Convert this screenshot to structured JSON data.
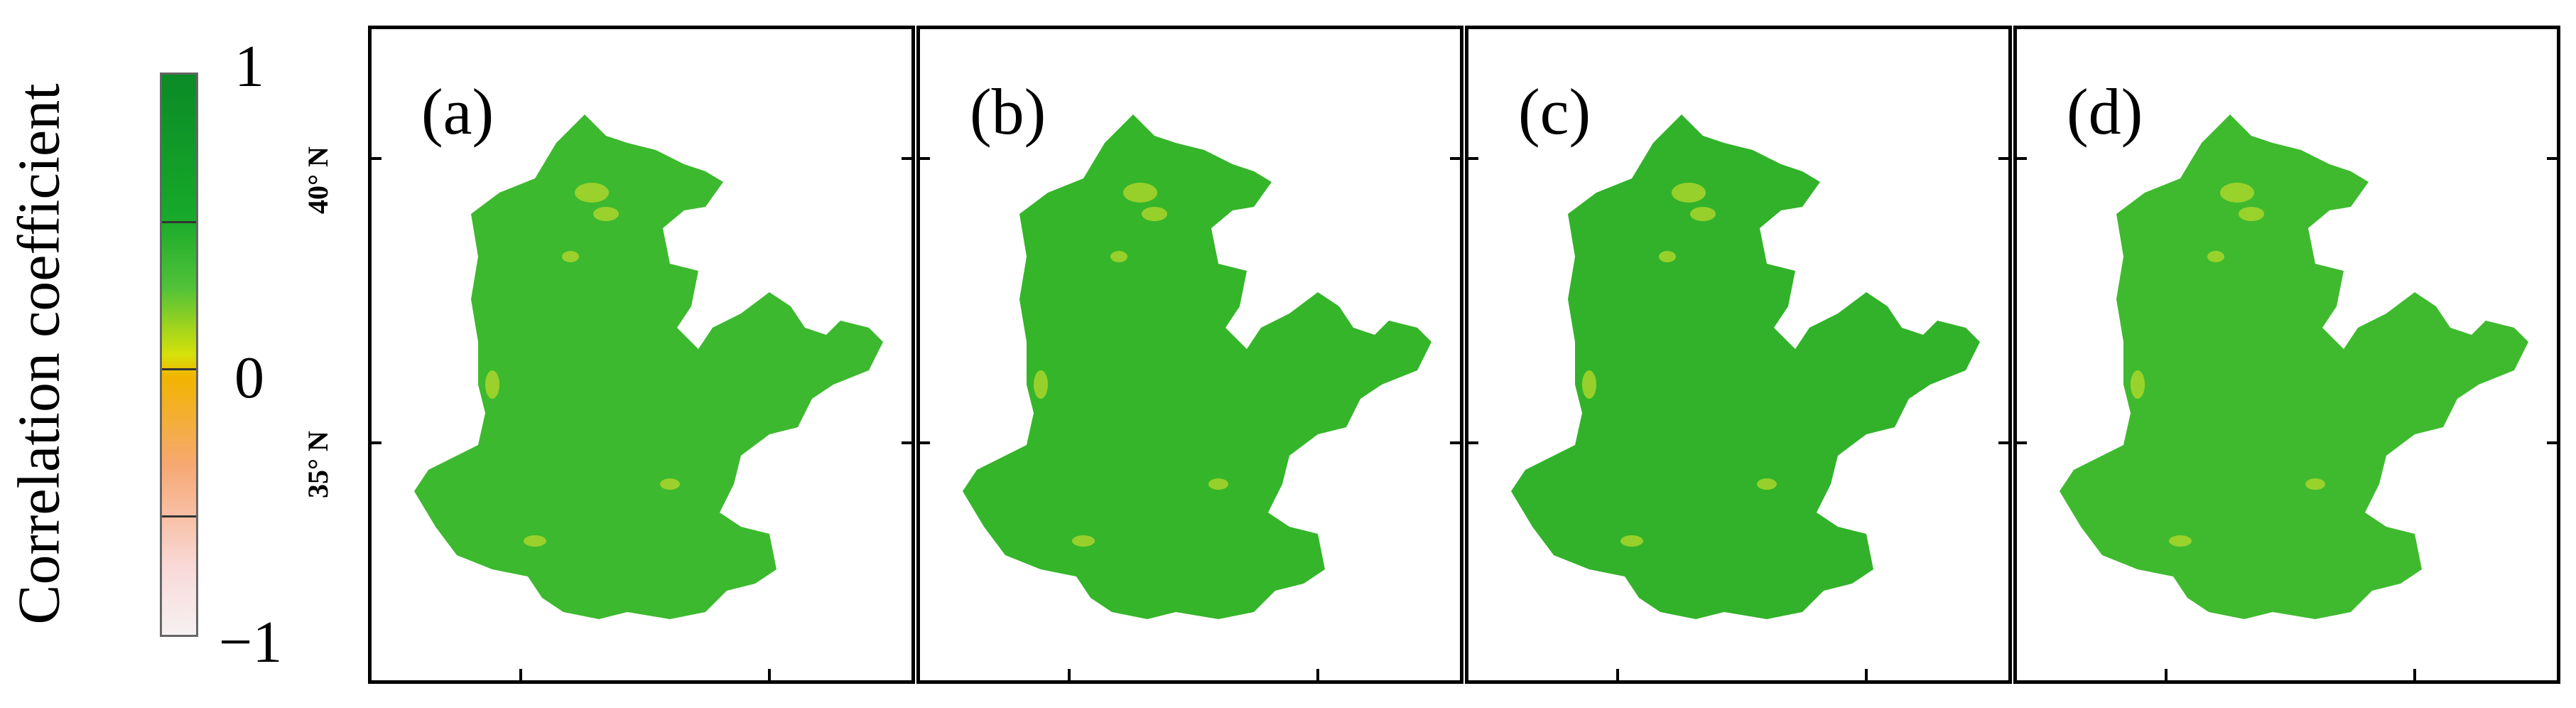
{
  "colorbar": {
    "title": "Correlation coefficient",
    "ticks": [
      "1",
      "0",
      "−1"
    ],
    "range": [
      -1,
      1
    ],
    "colors": [
      "#0b8a26",
      "#16a92a",
      "#50c238",
      "#d6e10a",
      "#f2b400",
      "#f6a874",
      "#f9d9d8",
      "#f6f1f2"
    ]
  },
  "latitude_labels": [
    "40° N",
    "35° N"
  ],
  "panels": [
    {
      "label": "(a)",
      "fill": "#3cb92e"
    },
    {
      "label": "(b)",
      "fill": "#35b52a"
    },
    {
      "label": "(c)",
      "fill": "#32b22a"
    },
    {
      "label": "(d)",
      "fill": "#3fba2f"
    }
  ]
}
